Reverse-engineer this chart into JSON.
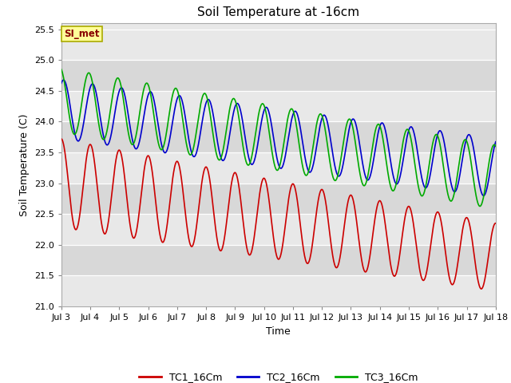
{
  "title": "Soil Temperature at -16cm",
  "xlabel": "Time",
  "ylabel": "Soil Temperature (C)",
  "ylim": [
    21.0,
    25.6
  ],
  "yticks": [
    21.0,
    21.5,
    22.0,
    22.5,
    23.0,
    23.5,
    24.0,
    24.5,
    25.0,
    25.5
  ],
  "xlim_days": [
    3,
    18
  ],
  "xtick_days": [
    3,
    4,
    5,
    6,
    7,
    8,
    9,
    10,
    11,
    12,
    13,
    14,
    15,
    16,
    17,
    18
  ],
  "xtick_labels": [
    "Jul 3",
    "Jul 4",
    "Jul 5",
    "Jul 6",
    "Jul 7",
    "Jul 8",
    "Jul 9",
    "Jul 10",
    "Jul 11",
    "Jul 12",
    "Jul 13",
    "Jul 14",
    "Jul 15",
    "Jul 16",
    "Jul 17",
    "Jul 18"
  ],
  "colors": {
    "TC1": "#cc0000",
    "TC2": "#0000cc",
    "TC3": "#00aa00"
  },
  "legend_labels": [
    "TC1_16Cm",
    "TC2_16Cm",
    "TC3_16Cm"
  ],
  "annotation_text": "SI_met",
  "annotation_bg": "#ffff99",
  "annotation_border": "#aaaa00",
  "annotation_text_color": "#880000",
  "background_color": "#ffffff",
  "band_colors": [
    "#e8e8e8",
    "#d8d8d8"
  ],
  "grid_color": "#ffffff",
  "title_fontsize": 11,
  "axis_label_fontsize": 9,
  "tick_fontsize": 8,
  "legend_fontsize": 9,
  "linewidth": 1.2,
  "n_points_per_day": 96,
  "total_days": 15
}
